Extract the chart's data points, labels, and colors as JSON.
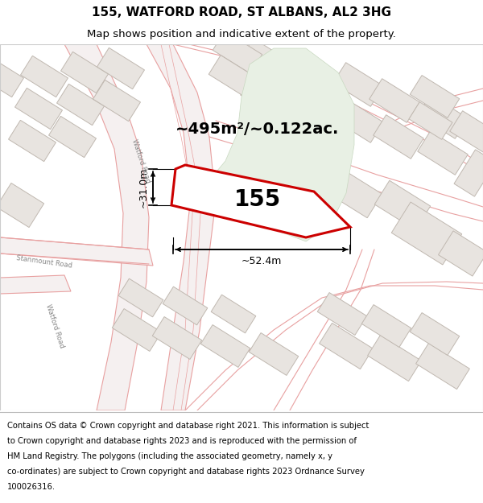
{
  "title_line1": "155, WATFORD ROAD, ST ALBANS, AL2 3HG",
  "title_line2": "Map shows position and indicative extent of the property.",
  "footer_lines": [
    "Contains OS data © Crown copyright and database right 2021. This information is subject",
    "to Crown copyright and database rights 2023 and is reproduced with the permission of",
    "HM Land Registry. The polygons (including the associated geometry, namely x, y",
    "co-ordinates) are subject to Crown copyright and database rights 2023 Ordnance Survey",
    "100026316."
  ],
  "area_text": "~495m²/~0.122ac.",
  "label_155": "155",
  "dim_width": "~52.4m",
  "dim_height": "~31.0m",
  "map_bg": "#ffffff",
  "plot_edge": "#cc0000",
  "road_line_color": "#e8a0a0",
  "road_fill": "#f5f0f0",
  "building_fill": "#e8e4e0",
  "building_edge": "#c0b8b0",
  "green_fill": "#e8f0e4",
  "green_edge": "#c8d8c0",
  "title_fontsize": 11,
  "subtitle_fontsize": 9.5,
  "footer_fontsize": 7.2,
  "area_fontsize": 14,
  "label_fontsize": 20,
  "dim_fontsize": 9
}
